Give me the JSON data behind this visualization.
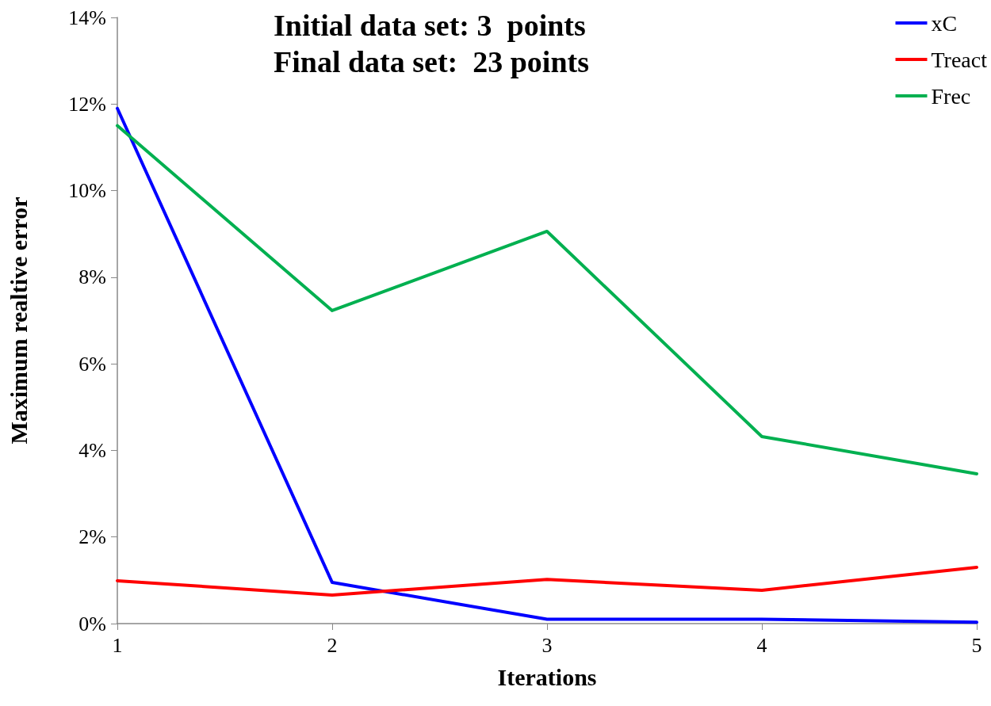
{
  "chart_data": {
    "type": "line",
    "title": "Initial data set: 3  points",
    "subtitle": "Final data set:  23 points",
    "xlabel": "Iterations",
    "ylabel": "Maximum realtive error",
    "x": [
      1,
      2,
      3,
      4,
      5
    ],
    "series": [
      {
        "name": "xC",
        "color": "#0000ff",
        "values": [
          11.9,
          0.95,
          0.1,
          0.1,
          0.03
        ]
      },
      {
        "name": "Treact",
        "color": "#ff0000",
        "values": [
          0.99,
          0.66,
          1.02,
          0.77,
          1.3
        ]
      },
      {
        "name": "Frec",
        "color": "#00b050",
        "values": [
          11.5,
          7.23,
          9.06,
          4.32,
          3.46
        ]
      }
    ],
    "xlim": [
      1,
      5
    ],
    "xticks": [
      1,
      2,
      3,
      4,
      5
    ],
    "ylim": [
      0,
      14
    ],
    "yticks": [
      {
        "value": 0,
        "label": "0%"
      },
      {
        "value": 2,
        "label": "2%"
      },
      {
        "value": 4,
        "label": "4%"
      },
      {
        "value": 6,
        "label": "6%"
      },
      {
        "value": 8,
        "label": "8%"
      },
      {
        "value": 10,
        "label": "10%"
      },
      {
        "value": 12,
        "label": "12%"
      },
      {
        "value": 14,
        "label": "14%"
      }
    ],
    "grid": false,
    "legend": "top right",
    "marker": "none",
    "line_style": "solid"
  }
}
